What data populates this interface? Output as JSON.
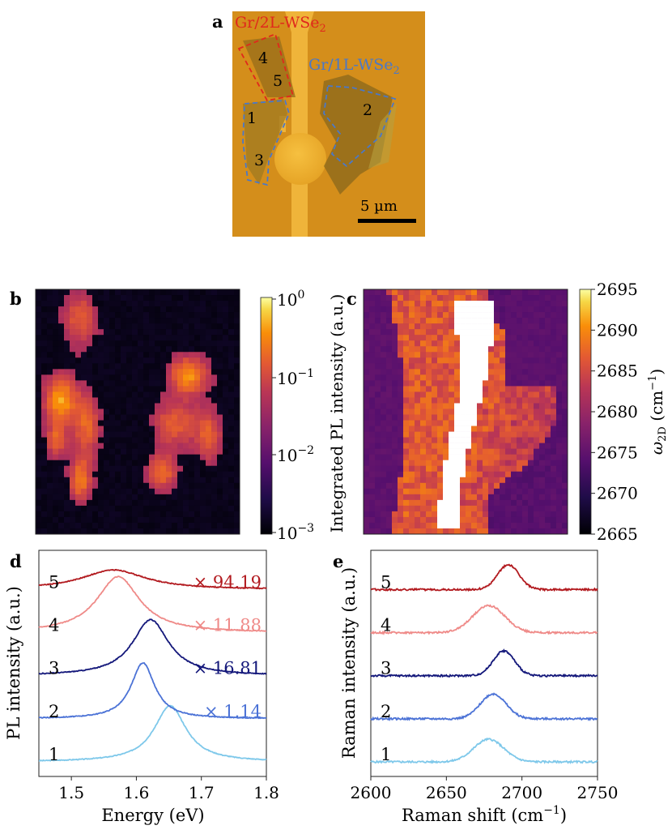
{
  "panels": {
    "a": {
      "letter": "a",
      "label_2L_main": "Gr/2L-WSe",
      "label_2L_sub": "2",
      "label_1L_main": "Gr/1L-WSe",
      "label_1L_sub": "2",
      "region_numbers": [
        "1",
        "2",
        "3",
        "4",
        "5"
      ],
      "scalebar_label": "5 µm",
      "colors": {
        "bg": "#d9911a",
        "label_2L": "#e0281c",
        "label_1L": "#4a78c8"
      }
    },
    "b": {
      "letter": "b",
      "colorbar_ticks": [
        "10",
        "10",
        "10",
        "10"
      ],
      "colorbar_exponents": [
        "0",
        "−1",
        "−2",
        "−3"
      ],
      "colorbar_label": "Integrated PL intensity (a.u.)",
      "colormap": "inferno",
      "scale": "log"
    },
    "c": {
      "letter": "c",
      "colorbar_ticks": [
        "2695",
        "2690",
        "2685",
        "2680",
        "2675",
        "2670",
        "2665"
      ],
      "colorbar_label_symbol": "ω",
      "colorbar_label_sub": "2D",
      "colorbar_label_unit": " (cm",
      "colorbar_label_exp": "−1",
      "colorbar_label_close": ")",
      "colormap": "inferno"
    },
    "d": {
      "letter": "d"
    },
    "e": {
      "letter": "e"
    }
  },
  "chart_data": [
    {
      "panel": "d",
      "type": "line",
      "xlabel": "Energy (eV)",
      "ylabel": "PL intensity (a.u.)",
      "xlim": [
        1.45,
        1.8
      ],
      "xticks": [
        "1.5",
        "1.6",
        "1.7",
        "1.8"
      ],
      "x_tick_values": [
        1.5,
        1.6,
        1.7,
        1.8
      ],
      "series": [
        {
          "label": "1",
          "color": "#7ec8ea",
          "offset": 0,
          "peak": 1.652,
          "width": 0.03,
          "height": 1.0,
          "multiplier": ""
        },
        {
          "label": "2",
          "color": "#4b72d6",
          "offset": 1,
          "peak": 1.61,
          "width": 0.022,
          "height": 1.0,
          "multiplier": "× 1.14"
        },
        {
          "label": "3",
          "color": "#13177a",
          "offset": 2,
          "peak": 1.622,
          "width": 0.034,
          "height": 1.0,
          "multiplier": "× 16.81"
        },
        {
          "label": "4",
          "color": "#ef8a88",
          "offset": 3,
          "peak": 1.572,
          "width": 0.04,
          "height": 1.0,
          "multiplier": "× 11.88"
        },
        {
          "label": "5",
          "color": "#b21a1f",
          "offset": 4,
          "peak": 1.565,
          "width": 0.06,
          "height": 0.35,
          "multiplier": "× 94.19"
        }
      ]
    },
    {
      "panel": "e",
      "type": "line",
      "xlabel": "Raman shift (cm",
      "xlabel_exp": "−1",
      "xlabel_close": ")",
      "ylabel": "Raman intensity (a.u.)",
      "xlim": [
        2600,
        2750
      ],
      "xticks": [
        "2600",
        "2650",
        "2700",
        "2750"
      ],
      "x_tick_values": [
        2600,
        2650,
        2700,
        2750
      ],
      "series": [
        {
          "label": "1",
          "color": "#7ec8ea",
          "offset": 0,
          "peak": 2678,
          "width": 14,
          "height": 0.5
        },
        {
          "label": "2",
          "color": "#4b72d6",
          "offset": 1,
          "peak": 2681,
          "width": 12,
          "height": 0.55
        },
        {
          "label": "3",
          "color": "#13177a",
          "offset": 2,
          "peak": 2688,
          "width": 10,
          "height": 0.55
        },
        {
          "label": "4",
          "color": "#ef8a88",
          "offset": 3,
          "peak": 2678,
          "width": 15,
          "height": 0.6
        },
        {
          "label": "5",
          "color": "#b21a1f",
          "offset": 4,
          "peak": 2691,
          "width": 10,
          "height": 0.55
        }
      ]
    }
  ]
}
